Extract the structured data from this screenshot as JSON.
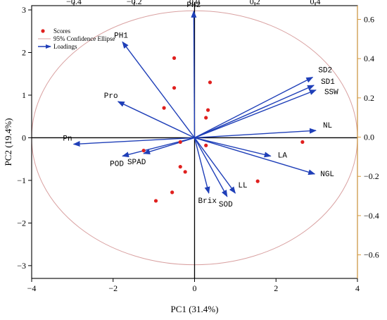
{
  "chart_data": {
    "type": "scatter",
    "subtype": "pca-biplot",
    "xlabel": "PC1 (31.4%)",
    "ylabel": "PC2 (19.4%)",
    "xlim": [
      -4,
      4
    ],
    "ylim": [
      -3.3,
      3.1
    ],
    "xticks": [
      "-4",
      "-2",
      "0",
      "2",
      "4"
    ],
    "yticks": [
      "-3",
      "-2",
      "-1",
      "0",
      "1",
      "2",
      "3"
    ],
    "top_axis": {
      "lim": [
        -0.54,
        0.54
      ],
      "ticks": [
        -0.4,
        -0.2,
        0.0,
        0.2,
        0.4
      ],
      "tick_labels": [
        "−0.4",
        "−0.2",
        "0.0",
        "0.2",
        "0.4"
      ]
    },
    "right_axis": {
      "lim": [
        -0.72,
        0.67
      ],
      "ticks": [
        -0.6,
        -0.4,
        -0.2,
        0.0,
        0.2,
        0.4,
        0.6
      ],
      "tick_labels": [
        "−0.6",
        "−0.4",
        "−0.2",
        "0.0",
        "0.2",
        "0.4",
        "0.6"
      ],
      "color": "#d89a3a"
    },
    "grid": false,
    "legend": {
      "placement": "top-left",
      "entries": [
        "Scores",
        "95% Confidence Ellipse",
        "Loadings"
      ]
    },
    "ellipse": {
      "center": [
        0,
        0
      ],
      "rx": 4.0,
      "ry": 2.98,
      "color": "#d9a1a1"
    },
    "scores": {
      "color": "#e0201e",
      "points": [
        {
          "x": -0.5,
          "y": 1.87
        },
        {
          "x": -0.5,
          "y": 1.17
        },
        {
          "x": -0.75,
          "y": 0.7
        },
        {
          "x": 0.38,
          "y": 1.3
        },
        {
          "x": 0.33,
          "y": 0.65
        },
        {
          "x": 0.28,
          "y": 0.47
        },
        {
          "x": -0.35,
          "y": -0.1
        },
        {
          "x": 0.28,
          "y": -0.18
        },
        {
          "x": -1.25,
          "y": -0.3
        },
        {
          "x": 2.65,
          "y": -0.1
        },
        {
          "x": -0.35,
          "y": -0.68
        },
        {
          "x": -0.23,
          "y": -0.8
        },
        {
          "x": 1.55,
          "y": -1.02
        },
        {
          "x": -0.55,
          "y": -1.28
        },
        {
          "x": -0.95,
          "y": -1.48
        }
      ]
    },
    "loadings": {
      "color": "#1f3fb8",
      "vectors": [
        {
          "name": "PH2",
          "x": -0.02,
          "y": 2.97
        },
        {
          "name": "PH1",
          "x": -1.77,
          "y": 2.25
        },
        {
          "name": "Pro",
          "x": -1.88,
          "y": 0.85
        },
        {
          "name": "Pn",
          "x": -2.97,
          "y": -0.15
        },
        {
          "name": "POD",
          "x": -1.77,
          "y": -0.43
        },
        {
          "name": "SPAD",
          "x": -1.25,
          "y": -0.37
        },
        {
          "name": "SD2",
          "x": 2.9,
          "y": 1.42
        },
        {
          "name": "SD1",
          "x": 2.93,
          "y": 1.23
        },
        {
          "name": "SSW",
          "x": 2.98,
          "y": 1.12
        },
        {
          "name": "NL",
          "x": 2.98,
          "y": 0.17
        },
        {
          "name": "LA",
          "x": 1.87,
          "y": -0.43
        },
        {
          "name": "NGL",
          "x": 2.95,
          "y": -0.85
        },
        {
          "name": "LL",
          "x": 1.0,
          "y": -1.3
        },
        {
          "name": "SOD",
          "x": 0.8,
          "y": -1.38
        },
        {
          "name": "Brix",
          "x": 0.35,
          "y": -1.3
        }
      ]
    }
  }
}
